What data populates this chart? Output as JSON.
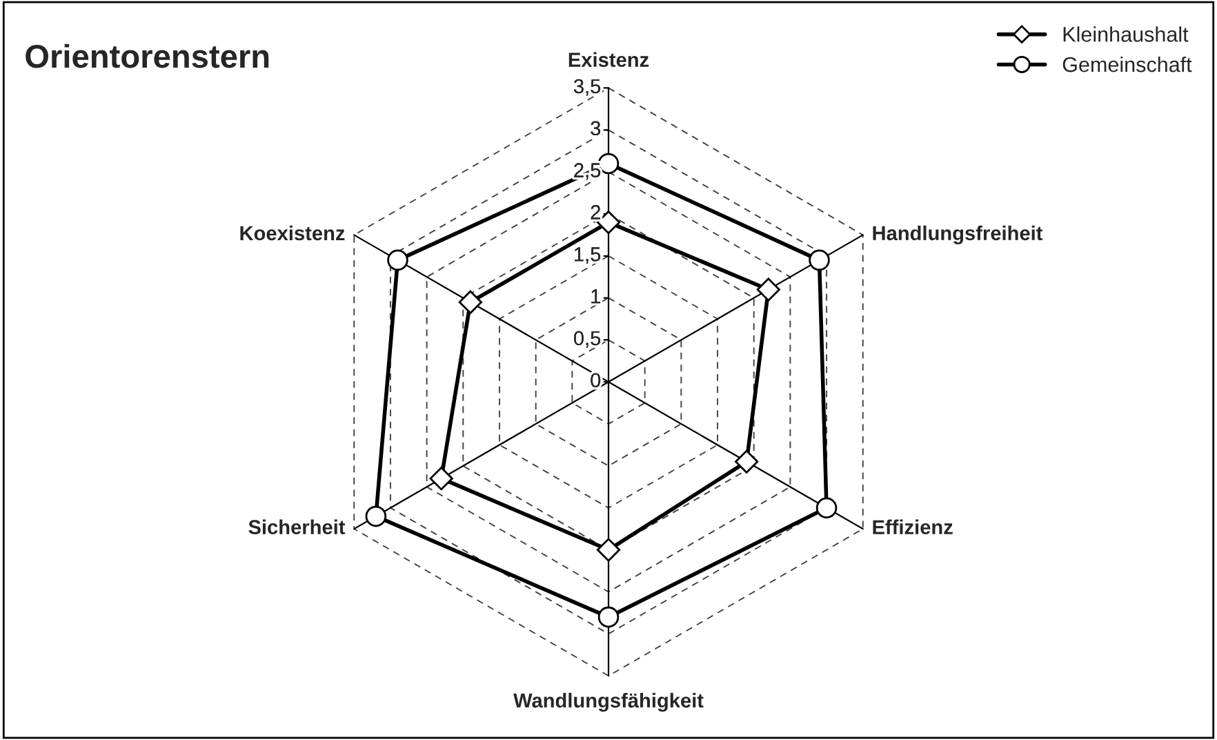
{
  "chart_data": {
    "type": "radar",
    "title": "Orientorenstern",
    "categories": [
      "Existenz",
      "Handlungsfreiheit",
      "Effizienz",
      "Wandlungsfähigkeit",
      "Sicherheit",
      "Koexistenz"
    ],
    "ylim": [
      0,
      3.5
    ],
    "yticks": [
      {
        "value": 0,
        "label": "0"
      },
      {
        "value": 0.5,
        "label": "0,5"
      },
      {
        "value": 1,
        "label": "1"
      },
      {
        "value": 1.5,
        "label": "1,5"
      },
      {
        "value": 2,
        "label": "2"
      },
      {
        "value": 2.5,
        "label": "2,5"
      },
      {
        "value": 3,
        "label": "3"
      },
      {
        "value": 3.5,
        "label": "3,5"
      }
    ],
    "grid": true,
    "legend": "top right",
    "line_style": "solid",
    "series": [
      {
        "name": "Kleinhaushalt",
        "color": "#000000",
        "marker": "diamond",
        "values": [
          1.9,
          2.2,
          1.9,
          2.0,
          2.3,
          1.9
        ]
      },
      {
        "name": "Gemeinschaft",
        "color": "#000000",
        "marker": "circle",
        "values": [
          2.6,
          2.9,
          3.0,
          2.8,
          3.2,
          2.9
        ]
      }
    ]
  }
}
